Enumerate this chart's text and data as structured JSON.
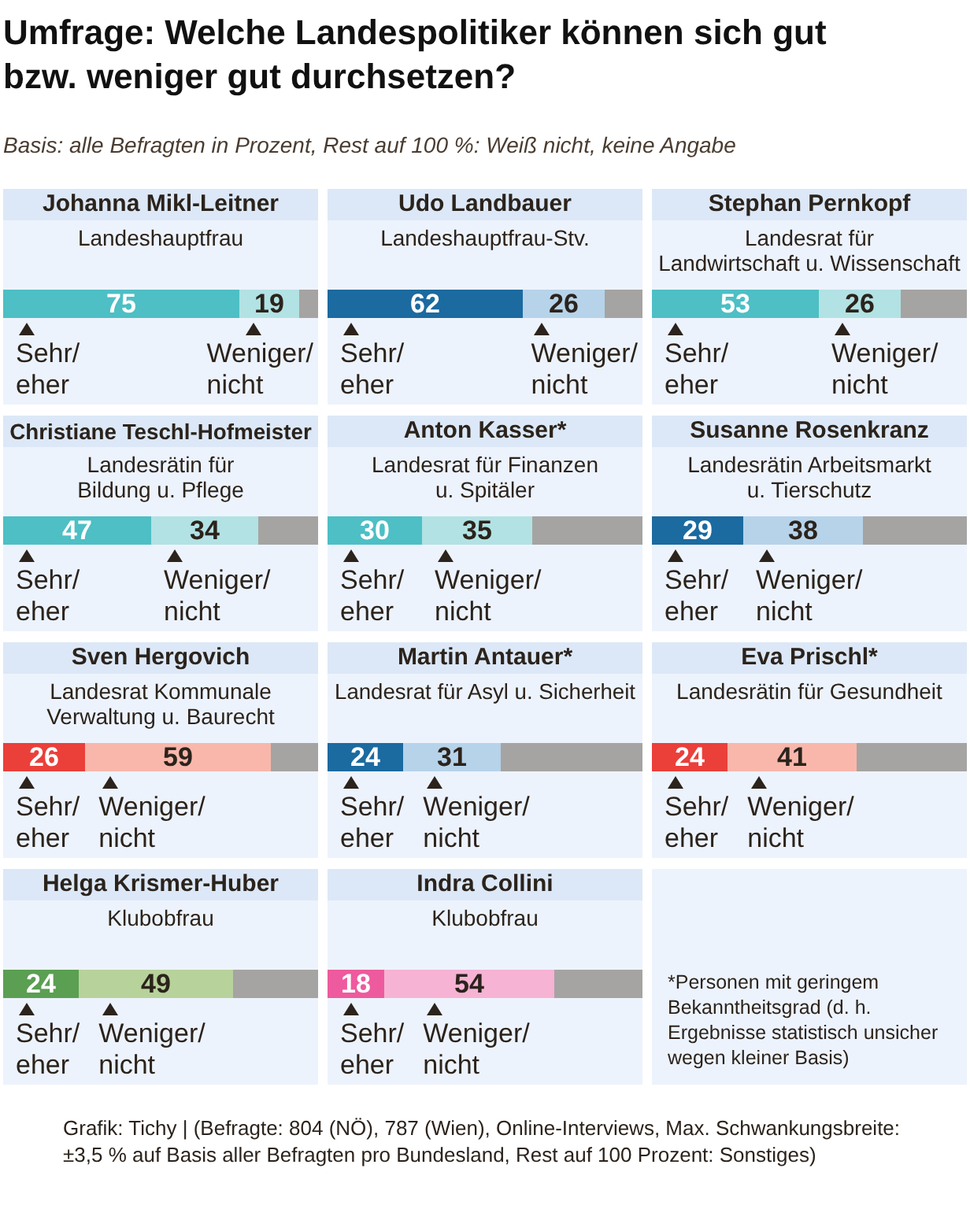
{
  "chart_data": [
    {
      "type": "other",
      "title": "Umfrage: Welche Landespolitiker können sich gut bzw. weniger gut durchsetzen?",
      "subtitle": "Basis: alle Befragten in Prozent, Rest auf 100 %: Weiß nicht, keine Angabe"
    },
    {
      "type": "bar",
      "orientation": "horizontal",
      "stacked": true,
      "title": "Johanna Mikl-Leitner",
      "subtitle": "Landeshauptfrau",
      "categories": [
        null
      ],
      "xlim": [
        0,
        100
      ],
      "tick_labels": false,
      "series": [
        {
          "name": "Sehr/eher",
          "color": "#4dbfc5",
          "values": [
            75
          ],
          "value_labels": [
            "75"
          ]
        },
        {
          "name": "Weniger/nicht",
          "color": "#b2e2e4",
          "values": [
            19
          ],
          "value_labels": [
            "19"
          ]
        },
        {
          "color": "#a5a4a2",
          "values": [
            6
          ]
        }
      ]
    },
    {
      "type": "bar",
      "orientation": "horizontal",
      "stacked": true,
      "title": "Udo Landbauer",
      "subtitle": "Landeshauptfrau-Stv.",
      "categories": [
        null
      ],
      "xlim": [
        0,
        100
      ],
      "tick_labels": false,
      "series": [
        {
          "name": "Sehr/eher",
          "color": "#1b6aa0",
          "values": [
            62
          ],
          "value_labels": [
            "62"
          ]
        },
        {
          "name": "Weniger/nicht",
          "color": "#b6d3ea",
          "values": [
            26
          ],
          "value_labels": [
            "26"
          ]
        },
        {
          "color": "#a5a4a2",
          "values": [
            12
          ]
        }
      ]
    },
    {
      "type": "bar",
      "orientation": "horizontal",
      "stacked": true,
      "title": "Stephan Pernkopf",
      "subtitle": "Landesrat für\nLandwirtschaft u. Wissenschaft",
      "categories": [
        null
      ],
      "xlim": [
        0,
        100
      ],
      "tick_labels": false,
      "series": [
        {
          "name": "Sehr/eher",
          "color": "#4dbfc5",
          "values": [
            53
          ],
          "value_labels": [
            "53"
          ]
        },
        {
          "name": "Weniger/nicht",
          "color": "#b2e2e4",
          "values": [
            26
          ],
          "value_labels": [
            "26"
          ]
        },
        {
          "color": "#a5a4a2",
          "values": [
            21
          ]
        }
      ]
    },
    {
      "type": "bar",
      "orientation": "horizontal",
      "stacked": true,
      "title": "Christiane Teschl-Hofmeister",
      "subtitle": "Landesrätin für\nBildung u. Pflege",
      "categories": [
        null
      ],
      "xlim": [
        0,
        100
      ],
      "tick_labels": false,
      "series": [
        {
          "name": "Sehr/eher",
          "color": "#4dbfc5",
          "values": [
            47
          ],
          "value_labels": [
            "47"
          ]
        },
        {
          "name": "Weniger/nicht",
          "color": "#b2e2e4",
          "values": [
            34
          ],
          "value_labels": [
            "34"
          ]
        },
        {
          "color": "#a5a4a2",
          "values": [
            19
          ]
        }
      ]
    },
    {
      "type": "bar",
      "orientation": "horizontal",
      "stacked": true,
      "title": "Anton Kasser*",
      "subtitle": "Landesrat für Finanzen\nu. Spitäler",
      "categories": [
        null
      ],
      "xlim": [
        0,
        100
      ],
      "tick_labels": false,
      "series": [
        {
          "name": "Sehr/eher",
          "color": "#4dbfc5",
          "values": [
            30
          ],
          "value_labels": [
            "30"
          ]
        },
        {
          "name": "Weniger/nicht",
          "color": "#b2e2e4",
          "values": [
            35
          ],
          "value_labels": [
            "35"
          ]
        },
        {
          "color": "#a5a4a2",
          "values": [
            35
          ]
        }
      ]
    },
    {
      "type": "bar",
      "orientation": "horizontal",
      "stacked": true,
      "title": "Susanne Rosenkranz",
      "subtitle": "Landesrätin Arbeitsmarkt\nu. Tierschutz",
      "categories": [
        null
      ],
      "xlim": [
        0,
        100
      ],
      "tick_labels": false,
      "series": [
        {
          "name": "Sehr/eher",
          "color": "#1b6aa0",
          "values": [
            29
          ],
          "value_labels": [
            "29"
          ]
        },
        {
          "name": "Weniger/nicht",
          "color": "#b6d3ea",
          "values": [
            38
          ],
          "value_labels": [
            "38"
          ]
        },
        {
          "color": "#a5a4a2",
          "values": [
            33
          ]
        }
      ]
    },
    {
      "type": "bar",
      "orientation": "horizontal",
      "stacked": true,
      "title": "Sven Hergovich",
      "subtitle": "Landesrat Kommunale\nVerwaltung u. Baurecht",
      "categories": [
        null
      ],
      "xlim": [
        0,
        100
      ],
      "tick_labels": false,
      "series": [
        {
          "name": "Sehr/eher",
          "color": "#eb3f3a",
          "values": [
            26
          ],
          "value_labels": [
            "26"
          ]
        },
        {
          "name": "Weniger/nicht",
          "color": "#f9b7ab",
          "values": [
            59
          ],
          "value_labels": [
            "59"
          ]
        },
        {
          "color": "#a5a4a2",
          "values": [
            15
          ]
        }
      ]
    },
    {
      "type": "bar",
      "orientation": "horizontal",
      "stacked": true,
      "title": "Martin Antauer*",
      "subtitle": "Landesrat für Asyl u. Sicherheit",
      "categories": [
        null
      ],
      "xlim": [
        0,
        100
      ],
      "tick_labels": false,
      "series": [
        {
          "name": "Sehr/eher",
          "color": "#1b6aa0",
          "values": [
            24
          ],
          "value_labels": [
            "24"
          ]
        },
        {
          "name": "Weniger/nicht",
          "color": "#b6d3ea",
          "values": [
            31
          ],
          "value_labels": [
            "31"
          ]
        },
        {
          "color": "#a5a4a2",
          "values": [
            45
          ]
        }
      ]
    },
    {
      "type": "bar",
      "orientation": "horizontal",
      "stacked": true,
      "title": "Eva Prischl*",
      "subtitle": "Landesrätin für Gesundheit",
      "categories": [
        null
      ],
      "xlim": [
        0,
        100
      ],
      "tick_labels": false,
      "series": [
        {
          "name": "Sehr/eher",
          "color": "#eb3f3a",
          "values": [
            24
          ],
          "value_labels": [
            "24"
          ]
        },
        {
          "name": "Weniger/nicht",
          "color": "#f9b7ab",
          "values": [
            41
          ],
          "value_labels": [
            "41"
          ]
        },
        {
          "color": "#a5a4a2",
          "values": [
            35
          ]
        }
      ]
    },
    {
      "type": "bar",
      "orientation": "horizontal",
      "stacked": true,
      "title": "Helga Krismer-Huber",
      "subtitle": "Klubobfrau",
      "categories": [
        null
      ],
      "xlim": [
        0,
        100
      ],
      "tick_labels": false,
      "series": [
        {
          "name": "Sehr/eher",
          "color": "#5a9f52",
          "values": [
            24
          ],
          "value_labels": [
            "24"
          ]
        },
        {
          "name": "Weniger/nicht",
          "color": "#b8d29b",
          "values": [
            49
          ],
          "value_labels": [
            "49"
          ]
        },
        {
          "color": "#a5a4a2",
          "values": [
            27
          ]
        }
      ]
    },
    {
      "type": "bar",
      "orientation": "horizontal",
      "stacked": true,
      "title": "Indra Collini",
      "subtitle": "Klubobfrau",
      "categories": [
        null
      ],
      "xlim": [
        0,
        100
      ],
      "tick_labels": false,
      "series": [
        {
          "name": "Sehr/eher",
          "color": "#ee5a9e",
          "values": [
            18
          ],
          "value_labels": [
            "18"
          ]
        },
        {
          "name": "Weniger/nicht",
          "color": "#f6b3d4",
          "values": [
            54
          ],
          "value_labels": [
            "54"
          ]
        },
        {
          "color": "#a5a4a2",
          "values": [
            28
          ]
        }
      ]
    },
    {
      "type": "other",
      "annotations": [
        "*Personen mit geringem Bekanntheitsgrad (d. h. Ergebnisse statistisch unsicher wegen kleiner Basis)"
      ]
    },
    {
      "type": "other",
      "annotations": [
        "Grafik: Tichy | (Befragte: 804 (NÖ), 787 (Wien), Online-Interviews, Max. Schwankungsbreite: ±3,5 % auf Basis aller Befragten pro Bundesland, Rest auf 100 Prozent: Sonstiges)"
      ]
    }
  ]
}
